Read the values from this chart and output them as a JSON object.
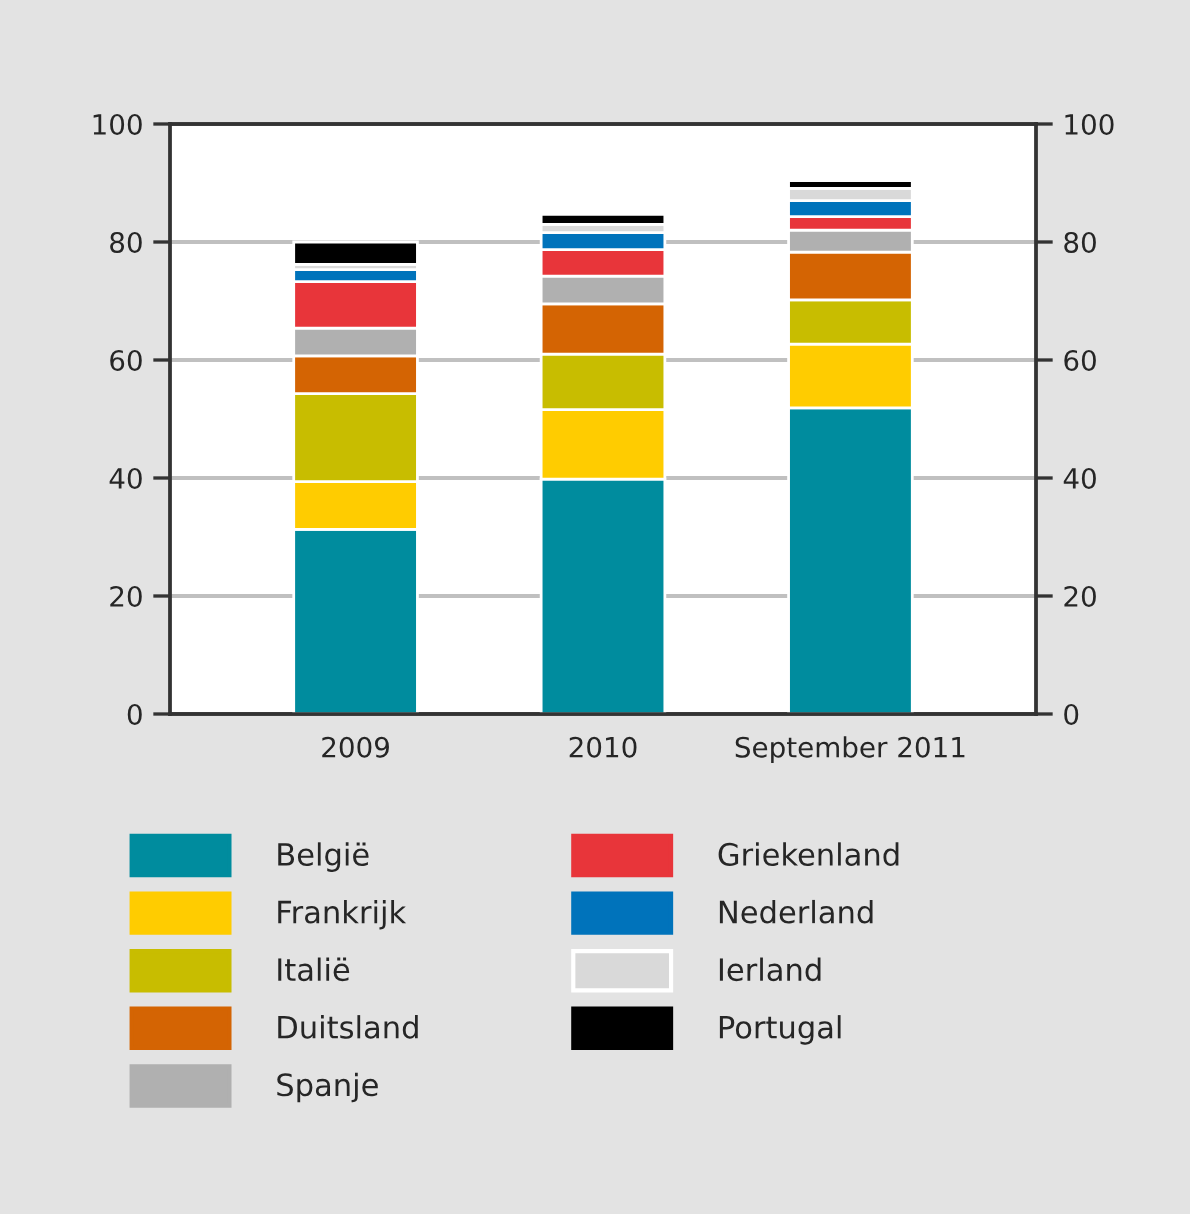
{
  "chart_data": {
    "type": "bar",
    "stacked": true,
    "categories": [
      "2009",
      "2010",
      "September 2011"
    ],
    "series": [
      {
        "name": "België",
        "color": "#008c9e",
        "values": [
          31.3,
          39.8,
          51.9
        ]
      },
      {
        "name": "Frankrijk",
        "color": "#ffcc00",
        "values": [
          8.1,
          11.8,
          10.8
        ]
      },
      {
        "name": "Italië",
        "color": "#c8bd00",
        "values": [
          14.9,
          9.4,
          7.5
        ]
      },
      {
        "name": "Duitsland",
        "color": "#d46403",
        "values": [
          6.4,
          8.5,
          8.1
        ]
      },
      {
        "name": "Spanje",
        "color": "#b0b0b0",
        "values": [
          4.7,
          4.7,
          3.7
        ]
      },
      {
        "name": "Griekenland",
        "color": "#e8353a",
        "values": [
          7.9,
          4.5,
          2.3
        ]
      },
      {
        "name": "Nederland",
        "color": "#0073bb",
        "values": [
          2.0,
          2.9,
          2.7
        ]
      },
      {
        "name": "Ierland",
        "color": "#d9d9d9",
        "values": [
          0.9,
          1.4,
          2.1
        ]
      },
      {
        "name": "Portugal",
        "color": "#000000",
        "values": [
          3.8,
          1.7,
          1.3
        ]
      }
    ],
    "ylim": [
      0,
      100
    ],
    "yticks": [
      0,
      20,
      40,
      60,
      80,
      100
    ],
    "y2lim": [
      0,
      100
    ],
    "y2ticks": [
      0,
      20,
      40,
      60,
      80,
      100
    ],
    "grid": "y",
    "legend": "bottom"
  }
}
